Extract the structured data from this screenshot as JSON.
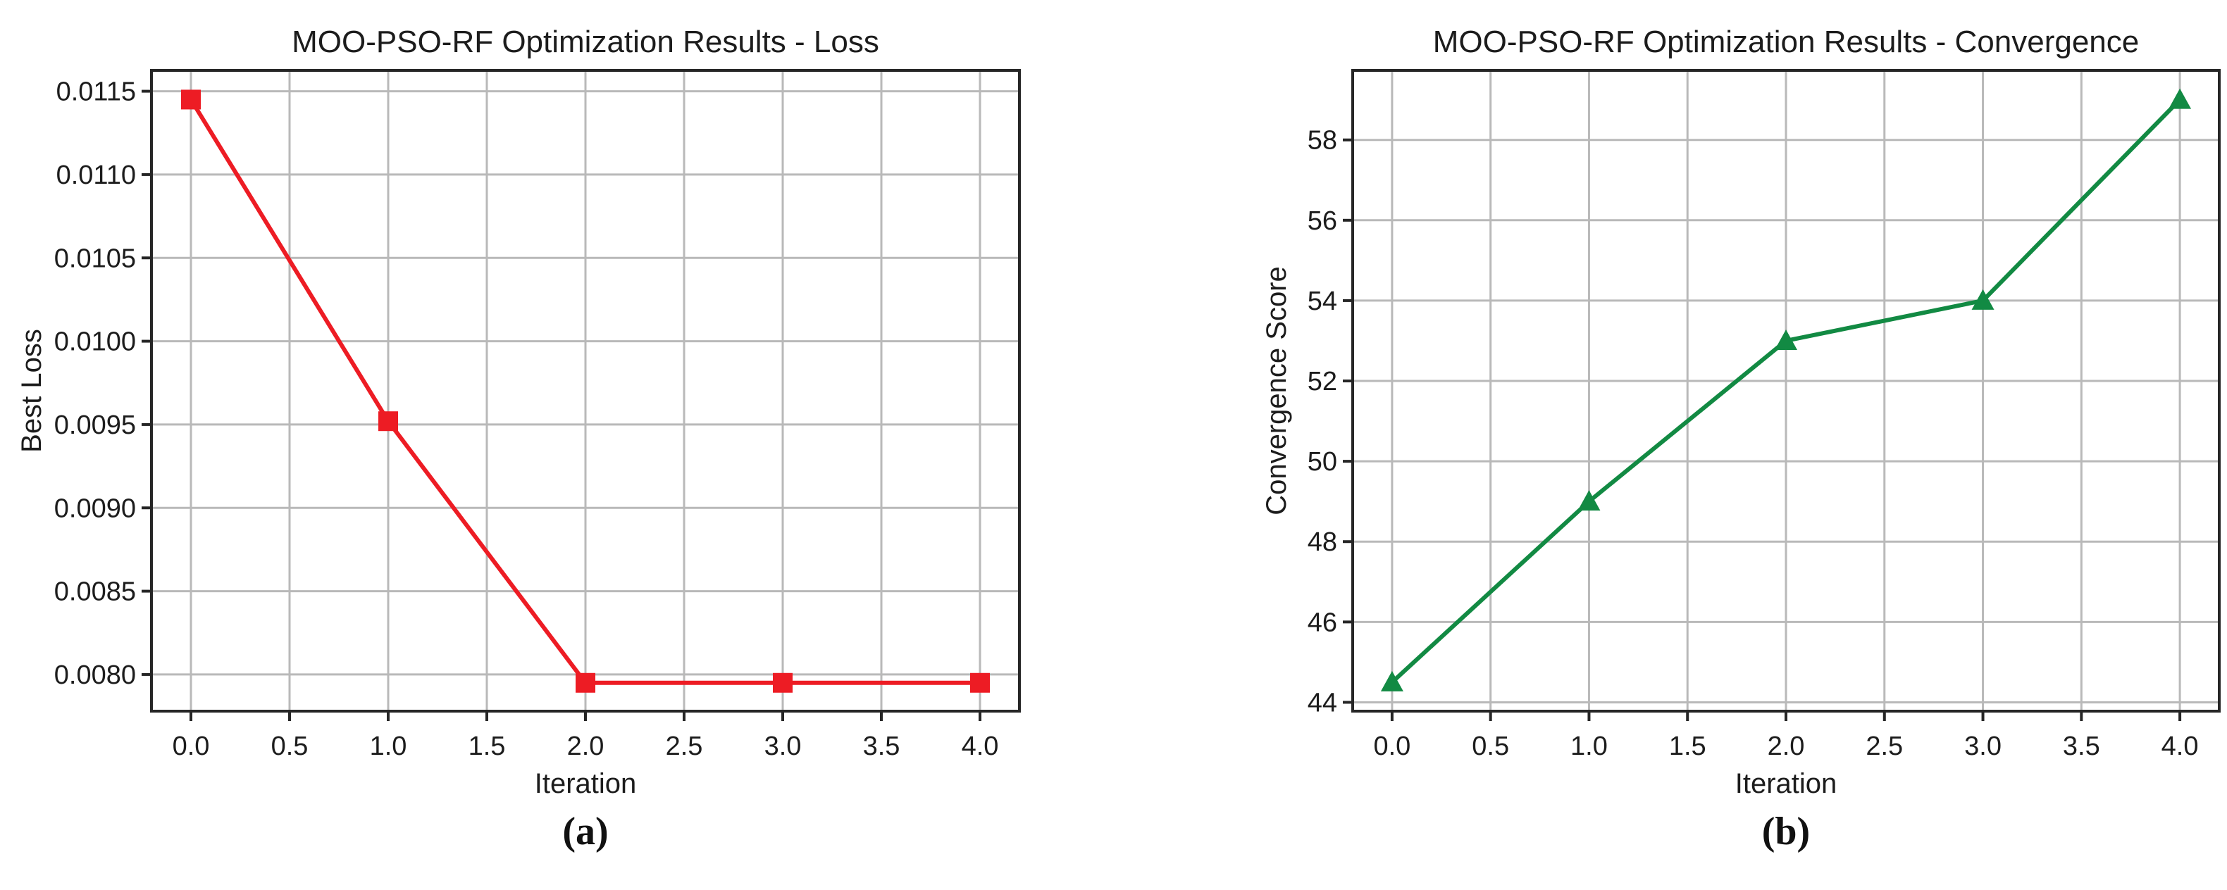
{
  "figure": {
    "background": "#ffffff",
    "grid_color": "#b9b9b9",
    "spine_color": "#262626",
    "text_color": "#1c1c1c"
  },
  "chart_data": [
    {
      "type": "line",
      "title": "MOO-PSO-RF Optimization Results - Loss",
      "xlabel": "Iteration",
      "ylabel": "Best Loss",
      "caption": "(a)",
      "grid": true,
      "legend": "none",
      "series": [
        {
          "name": "Best Loss",
          "marker": "square",
          "color": "#ed1c24",
          "x": [
            0,
            1,
            2,
            3,
            4
          ],
          "y": [
            0.01145,
            0.00952,
            0.00795,
            0.00795,
            0.00795
          ]
        }
      ],
      "xlim": [
        -0.2,
        4.2
      ],
      "ylim": [
        0.00778,
        0.011625
      ],
      "xticks": {
        "values": [
          0,
          0.5,
          1,
          1.5,
          2,
          2.5,
          3,
          3.5,
          4
        ],
        "labels": [
          "0.0",
          "0.5",
          "1.0",
          "1.5",
          "2.0",
          "2.5",
          "3.0",
          "3.5",
          "4.0"
        ]
      },
      "yticks": {
        "values": [
          0.008,
          0.0085,
          0.009,
          0.0095,
          0.01,
          0.0105,
          0.011,
          0.0115
        ],
        "labels": [
          "0.0080",
          "0.0085",
          "0.0090",
          "0.0095",
          "0.0100",
          "0.0105",
          "0.0110",
          "0.0115"
        ]
      }
    },
    {
      "type": "line",
      "title": "MOO-PSO-RF Optimization Results - Convergence",
      "xlabel": "Iteration",
      "ylabel": "Convergence Score",
      "caption": "(b)",
      "grid": true,
      "legend": "none",
      "series": [
        {
          "name": "Convergence Score",
          "marker": "triangle-up",
          "color": "#128a43",
          "x": [
            0,
            1,
            2,
            3,
            4
          ],
          "y": [
            44.5,
            49,
            53,
            54,
            59
          ]
        }
      ],
      "xlim": [
        -0.2,
        4.2
      ],
      "ylim": [
        43.78,
        59.73
      ],
      "xticks": {
        "values": [
          0,
          0.5,
          1,
          1.5,
          2,
          2.5,
          3,
          3.5,
          4
        ],
        "labels": [
          "0.0",
          "0.5",
          "1.0",
          "1.5",
          "2.0",
          "2.5",
          "3.0",
          "3.5",
          "4.0"
        ]
      },
      "yticks": {
        "values": [
          44,
          46,
          48,
          50,
          52,
          54,
          56,
          58
        ],
        "labels": [
          "44",
          "46",
          "48",
          "50",
          "52",
          "54",
          "56",
          "58"
        ]
      }
    }
  ]
}
